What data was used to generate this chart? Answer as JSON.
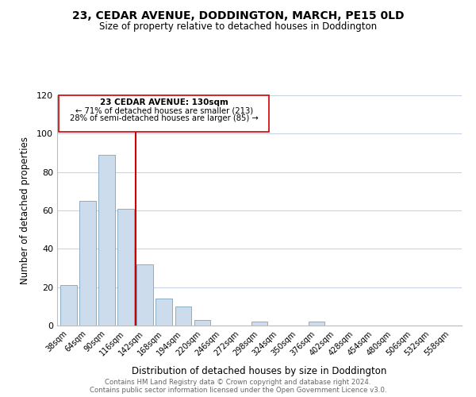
{
  "title": "23, CEDAR AVENUE, DODDINGTON, MARCH, PE15 0LD",
  "subtitle": "Size of property relative to detached houses in Doddington",
  "xlabel": "Distribution of detached houses by size in Doddington",
  "ylabel": "Number of detached properties",
  "bin_labels": [
    "38sqm",
    "64sqm",
    "90sqm",
    "116sqm",
    "142sqm",
    "168sqm",
    "194sqm",
    "220sqm",
    "246sqm",
    "272sqm",
    "298sqm",
    "324sqm",
    "350sqm",
    "376sqm",
    "402sqm",
    "428sqm",
    "454sqm",
    "480sqm",
    "506sqm",
    "532sqm",
    "558sqm"
  ],
  "bar_values": [
    21,
    65,
    89,
    61,
    32,
    14,
    10,
    3,
    0,
    0,
    2,
    0,
    0,
    2,
    0,
    0,
    0,
    0,
    0,
    0,
    0
  ],
  "bar_color": "#ccdcec",
  "bar_edge_color": "#8aaec8",
  "vline_color": "#cc0000",
  "ylim": [
    0,
    120
  ],
  "yticks": [
    0,
    20,
    40,
    60,
    80,
    100,
    120
  ],
  "annotation_title": "23 CEDAR AVENUE: 130sqm",
  "annotation_line1": "← 71% of detached houses are smaller (213)",
  "annotation_line2": "28% of semi-detached houses are larger (85) →",
  "footer_line1": "Contains HM Land Registry data © Crown copyright and database right 2024.",
  "footer_line2": "Contains public sector information licensed under the Open Government Licence v3.0.",
  "background_color": "#ffffff",
  "grid_color": "#c8d4e4",
  "title_fontsize": 10,
  "subtitle_fontsize": 8.5
}
